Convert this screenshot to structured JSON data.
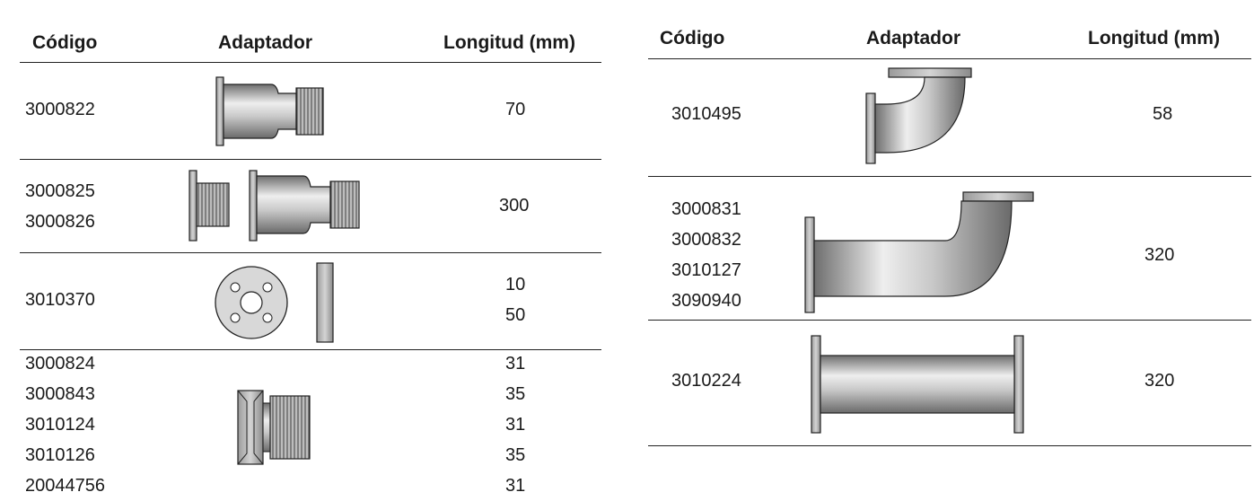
{
  "left_table": {
    "headers": {
      "code": "Código",
      "adapter": "Adaptador",
      "length": "Longitud (mm)"
    },
    "rows": [
      {
        "codes": [
          "3000822"
        ],
        "lengths": [
          "70"
        ]
      },
      {
        "codes": [
          "3000825",
          "3000826"
        ],
        "lengths": [
          "300"
        ]
      },
      {
        "codes": [
          "3010370"
        ],
        "lengths": [
          "10",
          "50"
        ]
      },
      {
        "codes": [
          "3000824",
          "3000843",
          "3010124",
          "3010126",
          "20044756"
        ],
        "lengths": [
          "31",
          "35",
          "31",
          "35",
          "31"
        ]
      }
    ]
  },
  "right_table": {
    "headers": {
      "code": "Código",
      "adapter": "Adaptador",
      "length": "Longitud (mm)"
    },
    "rows": [
      {
        "codes": [
          "3010495"
        ],
        "lengths": [
          "58"
        ]
      },
      {
        "codes": [
          "3000831",
          "3000832",
          "3010127",
          "3090940"
        ],
        "lengths": [
          "320"
        ]
      },
      {
        "codes": [
          "3010224"
        ],
        "lengths": [
          "320"
        ]
      }
    ]
  }
}
